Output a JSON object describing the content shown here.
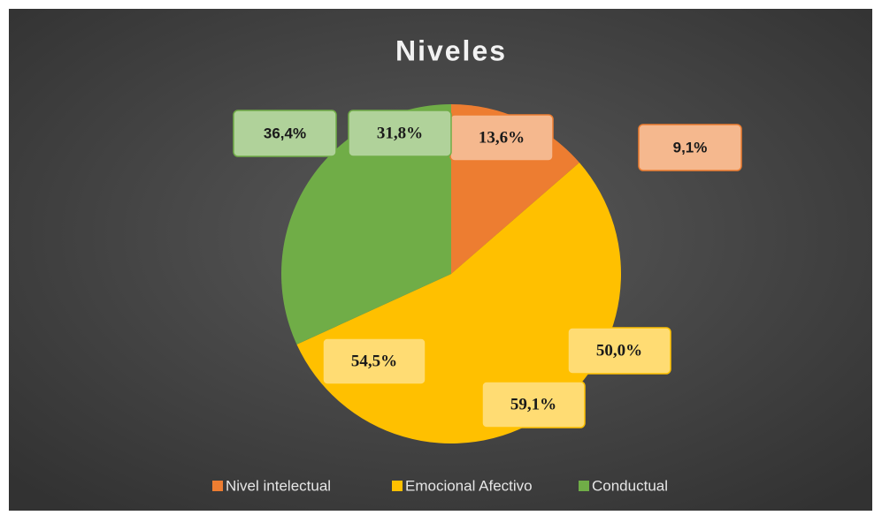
{
  "chart_data": {
    "type": "pie",
    "title": "Niveles",
    "categories": [
      "Nivel intelectual",
      "Emocional Afectivo",
      "Conductual"
    ],
    "colors": [
      "#ed7d31",
      "#ffc000",
      "#70ad47"
    ],
    "series": [
      {
        "values": [
          13.6,
          54.5,
          31.8
        ],
        "value_labels": [
          "13,6%",
          "54,5%",
          "31,8%"
        ]
      },
      {
        "values": [
          9.1,
          59.1,
          null
        ],
        "value_labels": [
          "9,1%",
          "59,1%",
          null
        ]
      },
      {
        "values": [
          null,
          50.0,
          36.4
        ],
        "value_labels": [
          null,
          "50,0%",
          "36,4%"
        ]
      }
    ],
    "legend": "bottom"
  }
}
